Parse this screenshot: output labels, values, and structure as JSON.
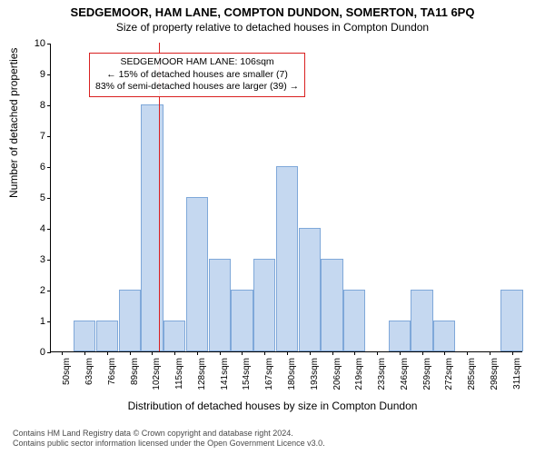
{
  "title": "SEDGEMOOR, HAM LANE, COMPTON DUNDON, SOMERTON, TA11 6PQ",
  "subtitle": "Size of property relative to detached houses in Compton Dundon",
  "y_axis_label": "Number of detached properties",
  "x_axis_label": "Distribution of detached houses by size in Compton Dundon",
  "footer_line1": "Contains HM Land Registry data © Crown copyright and database right 2024.",
  "footer_line2": "Contains public sector information licensed under the Open Government Licence v3.0.",
  "chart": {
    "type": "bar",
    "ylim": [
      0,
      10
    ],
    "ytick_step": 1,
    "x_labels": [
      "50sqm",
      "63sqm",
      "76sqm",
      "89sqm",
      "102sqm",
      "115sqm",
      "128sqm",
      "141sqm",
      "154sqm",
      "167sqm",
      "180sqm",
      "193sqm",
      "206sqm",
      "219sqm",
      "233sqm",
      "246sqm",
      "259sqm",
      "272sqm",
      "285sqm",
      "298sqm",
      "311sqm"
    ],
    "values": [
      0,
      1,
      1,
      2,
      8,
      1,
      5,
      3,
      2,
      3,
      6,
      4,
      3,
      2,
      0,
      1,
      2,
      1,
      0,
      0,
      2
    ],
    "bar_color": "#c5d8f0",
    "bar_border_color": "#7fa8d9",
    "background_color": "#ffffff",
    "axis_color": "#000000",
    "reference_line": {
      "position_index": 4.3,
      "color": "#d92020"
    },
    "annotation": {
      "line1": "SEDGEMOOR HAM LANE: 106sqm",
      "line2": "← 15% of detached houses are smaller (7)",
      "line3": "83% of semi-detached houses are larger (39) →",
      "border_color": "#d92020"
    }
  }
}
